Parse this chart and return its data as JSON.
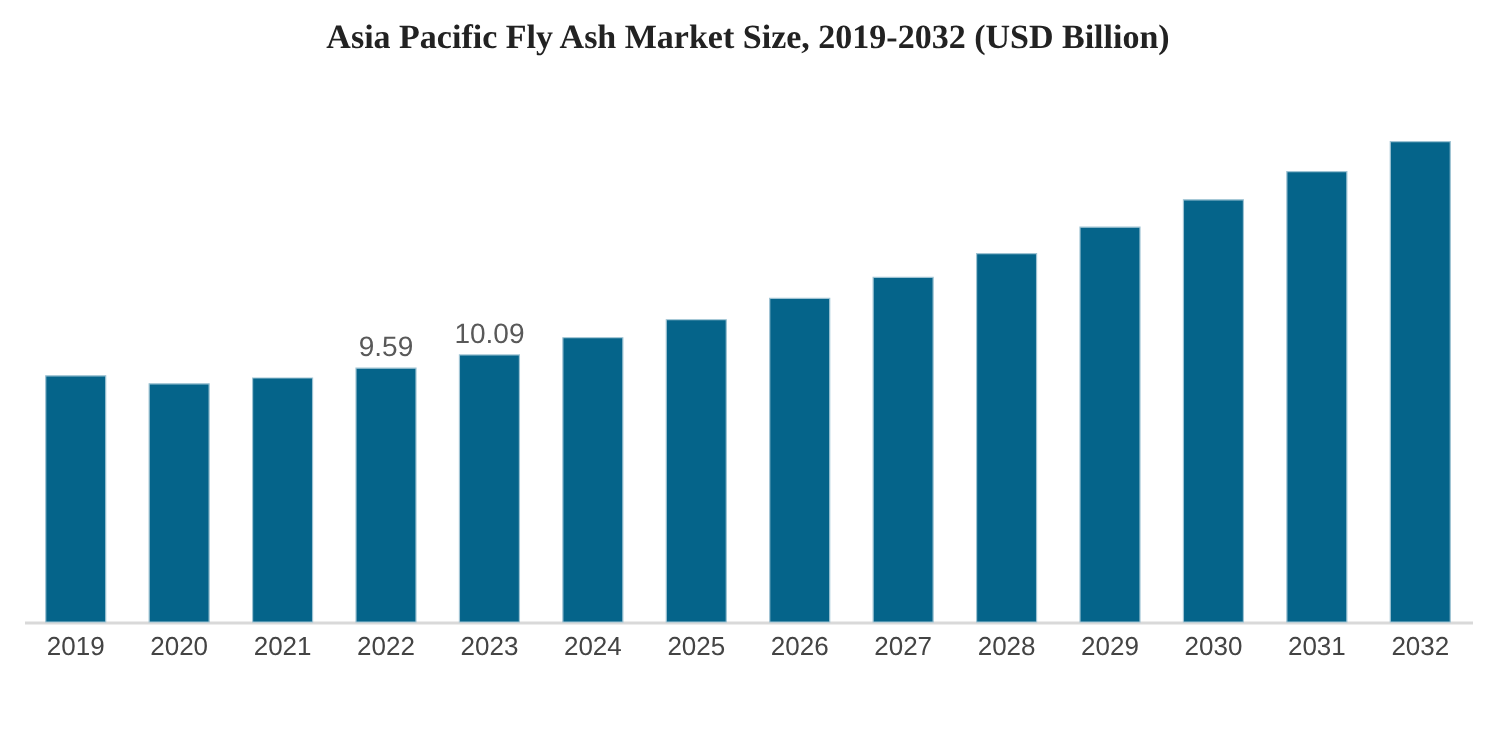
{
  "chart_data": {
    "type": "bar",
    "title": "Asia Pacific Fly Ash Market Size, 2019-2032 (USD Billion)",
    "categories": [
      "2019",
      "2020",
      "2021",
      "2022",
      "2023",
      "2024",
      "2025",
      "2026",
      "2027",
      "2028",
      "2029",
      "2030",
      "2031",
      "2032"
    ],
    "values": [
      9.3,
      9.0,
      9.22,
      9.59,
      10.09,
      10.74,
      11.42,
      12.23,
      13.02,
      13.92,
      14.92,
      15.95,
      17.02,
      18.15
    ],
    "value_labels": [
      null,
      null,
      null,
      "9.59",
      "10.09",
      null,
      null,
      null,
      null,
      null,
      null,
      null,
      null,
      null
    ],
    "color": "#05648a"
  }
}
